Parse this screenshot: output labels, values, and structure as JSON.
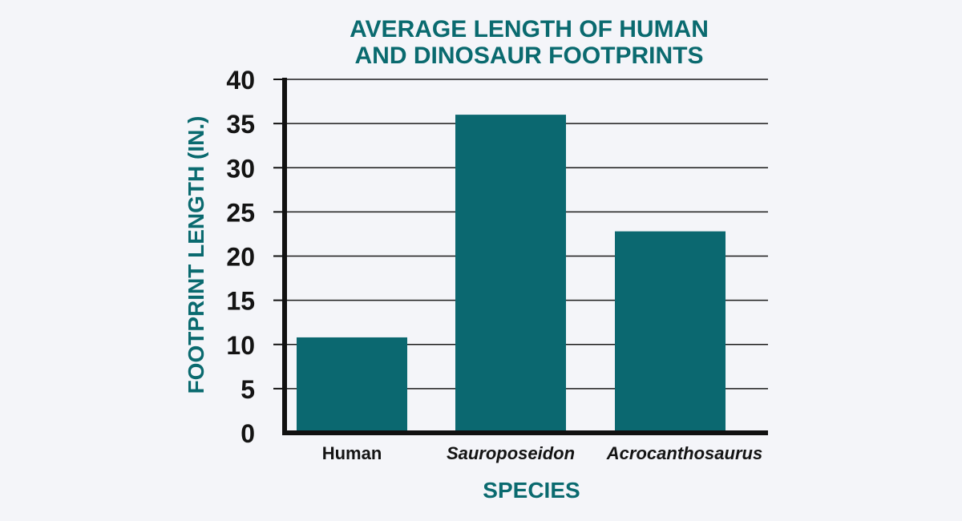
{
  "chart_data": {
    "type": "bar",
    "title_lines": [
      "AVERAGE LENGTH OF HUMAN",
      "AND DINOSAUR FOOTPRINTS"
    ],
    "categories": [
      "Human",
      "Sauroposeidon",
      "Acrocanthosaurus"
    ],
    "category_styles": [
      "normal",
      "italic",
      "italic"
    ],
    "values": [
      10.8,
      36,
      22.8
    ],
    "xlabel": "SPECIES",
    "ylabel": "FOOTPRINT LENGTH (IN.)",
    "ylim": [
      0,
      40
    ],
    "yticks": [
      0,
      5,
      10,
      15,
      20,
      25,
      30,
      35,
      40
    ],
    "grid": true,
    "colors": {
      "bar": "#0b6870",
      "accent": "#0a6a6f",
      "grid": "#1a1a1a",
      "axis": "#111111",
      "background": "#f4f5f9"
    }
  }
}
